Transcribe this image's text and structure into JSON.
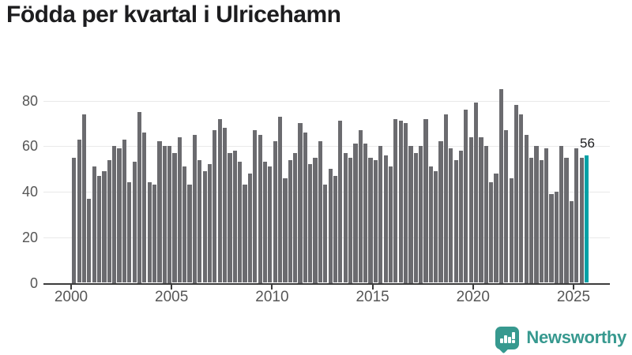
{
  "title": "Födda per kvartal i Ulricehamn",
  "colors": {
    "bar": "#6b6b6f",
    "highlight": "#00a1a6",
    "axis": "#3c3c3c",
    "grid": "#e9e9e9",
    "tick_label": "#565656",
    "title_text": "#1d1d1f",
    "logo": "#37998f"
  },
  "chart_data": {
    "type": "bar",
    "title": "Födda per kvartal i Ulricehamn",
    "x_unit": "quarter",
    "x_start": "2000 Q1",
    "x_end": "2025 Q3",
    "values": [
      55,
      63,
      74,
      37,
      51,
      47,
      49,
      54,
      60,
      59,
      63,
      44,
      53,
      75,
      66,
      44,
      43,
      62,
      60,
      60,
      57,
      64,
      51,
      43,
      65,
      54,
      49,
      52,
      67,
      72,
      68,
      57,
      58,
      53,
      43,
      48,
      67,
      65,
      53,
      51,
      62,
      73,
      46,
      54,
      57,
      70,
      66,
      52,
      55,
      62,
      43,
      50,
      47,
      71,
      57,
      55,
      61,
      67,
      61,
      55,
      54,
      60,
      56,
      51,
      72,
      71,
      70,
      60,
      57,
      60,
      72,
      51,
      49,
      62,
      74,
      59,
      54,
      58,
      76,
      64,
      79,
      64,
      60,
      44,
      48,
      85,
      67,
      46,
      78,
      74,
      65,
      55,
      60,
      54,
      59,
      39,
      40,
      60,
      55,
      36,
      59,
      55,
      56
    ],
    "highlight_last_bar": true,
    "last_value_label": "56",
    "y_ticks": [
      0,
      20,
      40,
      60,
      80
    ],
    "x_ticks": [
      2000,
      2005,
      2010,
      2015,
      2020,
      2025
    ],
    "ylim": [
      0,
      88
    ],
    "grid": "horizontal",
    "legend": "none"
  },
  "branding": {
    "label": "Newsworthy",
    "icon": "newsworthy-speech-bubble-barchart-icon"
  }
}
